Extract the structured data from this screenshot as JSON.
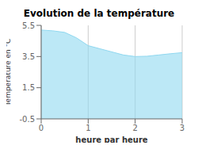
{
  "chart_data": {
    "type": "area",
    "title": "Evolution de la température",
    "xlabel": "heure par heure",
    "ylabel": "Température en °C",
    "x": [
      0,
      0.25,
      0.5,
      0.75,
      1.0,
      1.25,
      1.5,
      1.75,
      2.0,
      2.25,
      2.5,
      2.75,
      3.0
    ],
    "y": [
      5.2,
      5.15,
      5.05,
      4.7,
      4.2,
      4.0,
      3.8,
      3.6,
      3.5,
      3.52,
      3.6,
      3.68,
      3.75
    ],
    "xlim": [
      0,
      3
    ],
    "ylim": [
      -0.5,
      5.5
    ],
    "xticks": [
      0,
      1,
      2,
      3
    ],
    "yticks": [
      -0.5,
      1.5,
      3.5,
      5.5
    ],
    "color": "#90d8f0",
    "grid": "x"
  }
}
